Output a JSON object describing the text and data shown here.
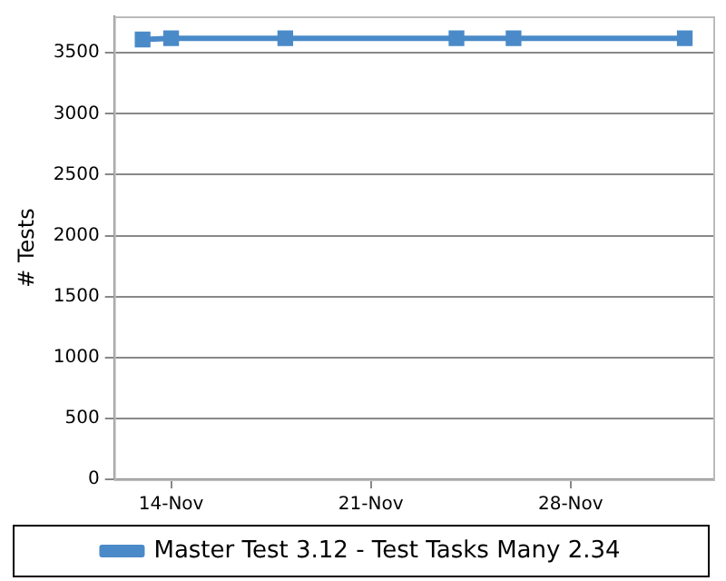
{
  "chart_data": {
    "type": "line",
    "ylabel": "# Tests",
    "x": [
      "--11-13",
      "--11-14",
      "--11-18",
      "--11-24",
      "--11-26",
      "--12-02"
    ],
    "series": [
      {
        "name": "Master Test 3.12 - Test Tasks Many 2.34",
        "color": "#4a8ac8",
        "values": [
          3610,
          3620,
          3620,
          3620,
          3620,
          3620
        ]
      }
    ],
    "xlim": [
      "--11-12",
      "--12-03"
    ],
    "xticks": [
      {
        "value": "--11-14",
        "label": "14-Nov"
      },
      {
        "value": "--11-21",
        "label": "21-Nov"
      },
      {
        "value": "--11-28",
        "label": "28-Nov"
      }
    ],
    "ylim": [
      0,
      3800
    ],
    "yticks": [
      0,
      500,
      1000,
      1500,
      2000,
      2500,
      3000,
      3500
    ],
    "grid": "y",
    "legend": "bottom",
    "marker": "square",
    "line_style": "solid"
  }
}
